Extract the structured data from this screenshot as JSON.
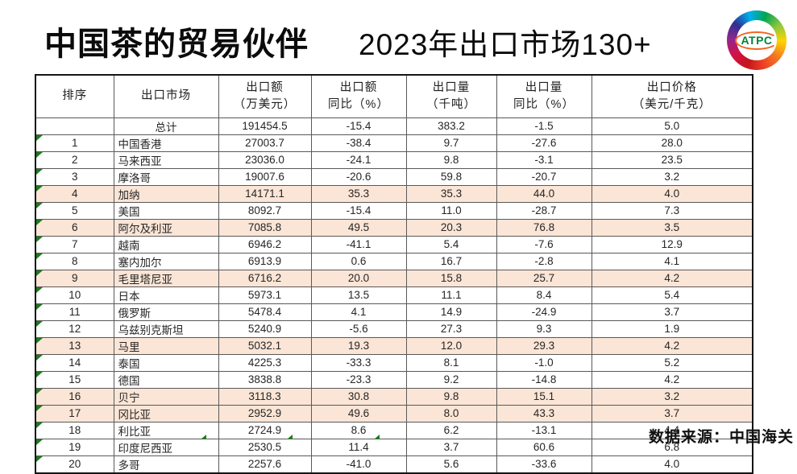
{
  "chart_data": {
    "type": "table",
    "title_main": "中国茶的贸易伙伴",
    "title_sub": "2023年出口市场130+",
    "source": "数据来源：中国海关",
    "logo_text": "ATPC",
    "columns": [
      {
        "id": "rank",
        "line1": "排序",
        "line2": ""
      },
      {
        "id": "market",
        "line1": "出口市场",
        "line2": ""
      },
      {
        "id": "export_value",
        "line1": "出口额",
        "line2": "（万美元）"
      },
      {
        "id": "export_value_yoy",
        "line1": "出口额",
        "line2": "同比（%）"
      },
      {
        "id": "export_volume",
        "line1": "出口量",
        "line2": "（千吨）"
      },
      {
        "id": "export_volume_yoy",
        "line1": "出口量",
        "line2": "同比（%）"
      },
      {
        "id": "export_price",
        "line1": "出口价格",
        "line2": "（美元/千克）"
      }
    ],
    "total_label": "总计",
    "total_values": [
      "191454.5",
      "-15.4",
      "383.2",
      "-1.5",
      "5.0"
    ],
    "rows": [
      [
        "1",
        "中国香港",
        "27003.7",
        "-38.4",
        "9.7",
        "-27.6",
        "28.0"
      ],
      [
        "2",
        "马来西亚",
        "23036.0",
        "-24.1",
        "9.8",
        "-3.1",
        "23.5"
      ],
      [
        "3",
        "摩洛哥",
        "19007.6",
        "-20.6",
        "59.8",
        "-20.7",
        "3.2"
      ],
      [
        "4",
        "加纳",
        "14171.1",
        "35.3",
        "35.3",
        "44.0",
        "4.0"
      ],
      [
        "5",
        "美国",
        "8092.7",
        "-15.4",
        "11.0",
        "-28.7",
        "7.3"
      ],
      [
        "6",
        "阿尔及利亚",
        "7085.8",
        "49.5",
        "20.3",
        "76.8",
        "3.5"
      ],
      [
        "7",
        "越南",
        "6946.2",
        "-41.1",
        "5.4",
        "-7.6",
        "12.9"
      ],
      [
        "8",
        "塞内加尔",
        "6913.9",
        "0.6",
        "16.7",
        "-2.8",
        "4.1"
      ],
      [
        "9",
        "毛里塔尼亚",
        "6716.2",
        "20.0",
        "15.8",
        "25.7",
        "4.2"
      ],
      [
        "10",
        "日本",
        "5973.1",
        "13.5",
        "11.1",
        "8.4",
        "5.4"
      ],
      [
        "11",
        "俄罗斯",
        "5478.4",
        "4.1",
        "14.9",
        "-24.9",
        "3.7"
      ],
      [
        "12",
        "乌兹别克斯坦",
        "5240.9",
        "-5.6",
        "27.3",
        "9.3",
        "1.9"
      ],
      [
        "13",
        "马里",
        "5032.1",
        "19.3",
        "12.0",
        "29.3",
        "4.2"
      ],
      [
        "14",
        "泰国",
        "4225.3",
        "-33.3",
        "8.1",
        "-1.0",
        "5.2"
      ],
      [
        "15",
        "德国",
        "3838.8",
        "-23.3",
        "9.2",
        "-14.8",
        "4.2"
      ],
      [
        "16",
        "贝宁",
        "3118.3",
        "30.8",
        "9.8",
        "15.1",
        "3.2"
      ],
      [
        "17",
        "冈比亚",
        "2952.9",
        "49.6",
        "8.0",
        "43.3",
        "3.7"
      ],
      [
        "18",
        "利比亚",
        "2724.9",
        "8.6",
        "6.2",
        "-13.1",
        "4.4"
      ],
      [
        "19",
        "印度尼西亚",
        "2530.5",
        "11.4",
        "3.7",
        "60.6",
        "6.8"
      ],
      [
        "20",
        "多哥",
        "2257.6",
        "-41.0",
        "5.6",
        "-33.6",
        "4.0"
      ]
    ],
    "highlighted_ranks": [
      4,
      6,
      9,
      13,
      16,
      17
    ],
    "colors": {
      "row_highlight": "#FBE5D6",
      "marker_green": "#1E7A1E",
      "logo_text_green": "#00843D"
    }
  }
}
